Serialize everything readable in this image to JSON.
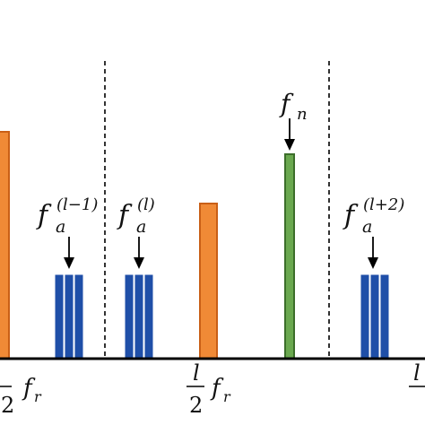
{
  "colors": {
    "orange": "#F08A36",
    "orange_edge": "#C95F16",
    "green": "#6AA84F",
    "green_edge": "#3C6E2A",
    "blue": "#1F4FA8",
    "blue_edge": "#0F2E6E",
    "axis": "#000000"
  },
  "labels": {
    "fn": {
      "base": "f",
      "sub": "n"
    },
    "fa_l_minus_1": {
      "base": "f",
      "sub": "a",
      "sup": "(l−1)"
    },
    "fa_l": {
      "base": "f",
      "sub": "a",
      "sup": "(l)"
    },
    "fa_l_plus_2": {
      "base": "f",
      "sub": "a",
      "sup": "(l+2)"
    }
  },
  "axis_ticks": {
    "left": {
      "numerator": "",
      "denominator": "2",
      "symbol": "f",
      "sub": "r"
    },
    "middle": {
      "numerator": "l",
      "denominator": "2",
      "symbol": "f",
      "sub": "r"
    },
    "right": {
      "numerator": "l",
      "denominator": "",
      "symbol": "",
      "sub": ""
    }
  },
  "icons": {
    "arrow": "down-arrow-icon",
    "divider": "dashed-divider"
  }
}
